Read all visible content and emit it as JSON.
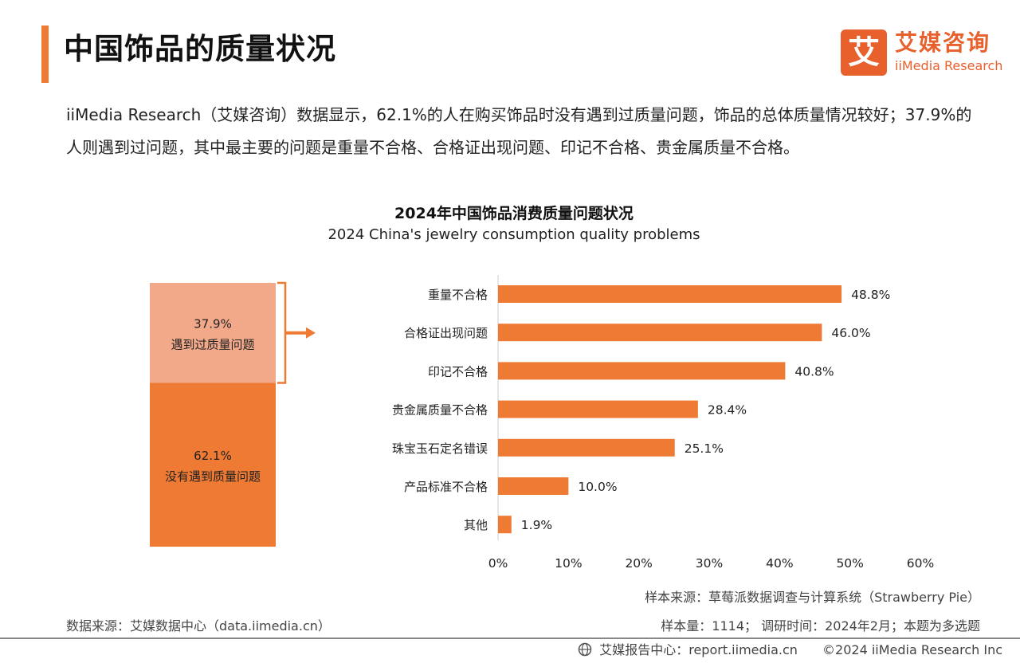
{
  "header": {
    "title": "中国饰品的质量状况",
    "logo_mark": "艾",
    "logo_cn": "艾媒咨询",
    "logo_en": "iiMedia Research"
  },
  "intro": "iiMedia Research（艾媒咨询）数据显示，62.1%的人在购买饰品时没有遇到过质量问题，饰品的总体质量情况较好；37.9%的人则遇到过问题，其中最主要的问题是重量不合格、合格证出现问题、印记不合格、贵金属质量不合格。",
  "colors": {
    "accent": "#ee7a33",
    "light": "#f2a98a",
    "axis": "#cccccc"
  },
  "chart_data": [
    {
      "type": "bar",
      "orientation": "vertical-stacked",
      "categories": [
        "遇到过质量问题",
        "没有遇到质量问题"
      ],
      "values": [
        37.9,
        62.1
      ],
      "value_labels": [
        "37.9%",
        "62.1%"
      ],
      "colors": [
        "#f2a98a",
        "#ee7a33"
      ]
    },
    {
      "type": "bar",
      "orientation": "horizontal",
      "title": "2024年中国饰品消费质量问题状况",
      "subtitle": "2024 China's jewelry consumption quality problems",
      "categories": [
        "重量不合格",
        "合格证出现问题",
        "印记不合格",
        "贵金属质量不合格",
        "珠宝玉石定名错误",
        "产品标准不合格",
        "其他"
      ],
      "values": [
        48.8,
        46.0,
        40.8,
        28.4,
        25.1,
        10.0,
        1.9
      ],
      "value_labels": [
        "48.8%",
        "46.0%",
        "40.8%",
        "28.4%",
        "25.1%",
        "10.0%",
        "1.9%"
      ],
      "xlim": [
        0,
        60
      ],
      "ticks": [
        0,
        10,
        20,
        30,
        40,
        50,
        60
      ],
      "tick_labels": [
        "0%",
        "10%",
        "20%",
        "30%",
        "40%",
        "50%",
        "60%"
      ],
      "grid": false,
      "color": "#ee7a33"
    }
  ],
  "sources": {
    "data_source": "数据来源：艾媒数据中心（data.iimedia.cn）",
    "sample_source": "样本来源：草莓派数据调查与计算系统（Strawberry Pie）",
    "sample_info": "样本量：1114；  调研时间：2024年2月；本题为多选题"
  },
  "footer": {
    "report_center": "艾媒报告中心：report.iimedia.cn",
    "copyright": "©2024  iiMedia Research  Inc"
  }
}
